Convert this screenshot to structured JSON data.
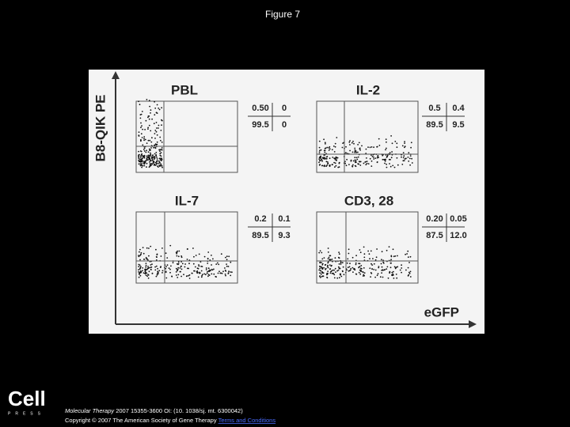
{
  "header": {
    "title": "Figure 7"
  },
  "figure": {
    "y_label": "B8-QIK PE",
    "x_label": "eGFP",
    "panels": [
      {
        "title": "PBL",
        "quadrants": [
          [
            "0.50",
            "0"
          ],
          [
            "99.5",
            "0"
          ]
        ]
      },
      {
        "title": "IL-2",
        "quadrants": [
          [
            "0.5",
            "0.4"
          ],
          [
            "89.5",
            "9.5"
          ]
        ]
      },
      {
        "title": "IL-7",
        "quadrants": [
          [
            "0.2",
            "0.1"
          ],
          [
            "89.5",
            "9.3"
          ]
        ]
      },
      {
        "title": "CD3, 28",
        "quadrants": [
          [
            "0.20",
            "0.05"
          ],
          [
            "87.5",
            "12.0"
          ]
        ]
      }
    ]
  },
  "footer": {
    "logo": "Cell",
    "logo_sub": "PRESS",
    "journal": "Molecular Therapy",
    "citation": " 2007 15355-3600 OI: (10. 1038/sj. mt. 6300042)",
    "copyright": "Copyright © 2007 The American Society of Gene Therapy ",
    "link": "Terms and Conditions"
  }
}
